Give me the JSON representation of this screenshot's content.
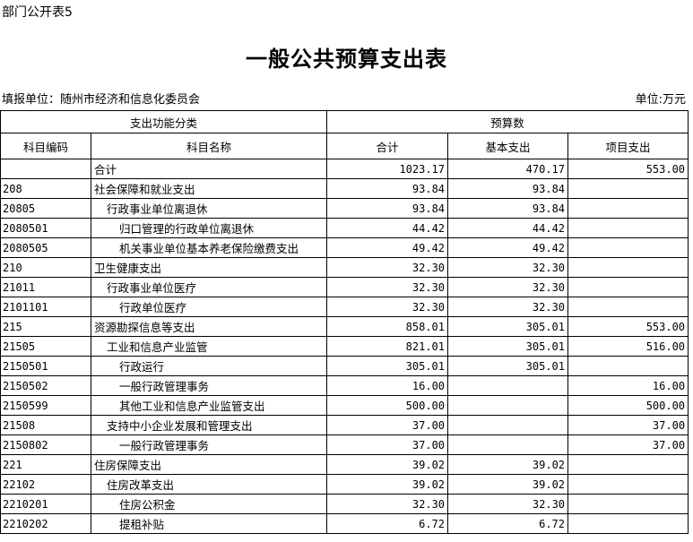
{
  "tag": "部门公开表5",
  "title": "一般公共预算支出表",
  "unit_left": "填报单位：随州市经济和信息化委员会",
  "unit_right": "单位:万元",
  "header": {
    "group1": "支出功能分类",
    "group2": "预算数",
    "code": "科目编码",
    "name": "科目名称",
    "total": "合计",
    "basic": "基本支出",
    "project": "项目支出"
  },
  "rows": [
    {
      "code": "",
      "name": "合计",
      "level": 1,
      "total": "1023.17",
      "basic": "470.17",
      "project": "553.00"
    },
    {
      "code": "208",
      "name": "社会保障和就业支出",
      "level": 1,
      "total": "93.84",
      "basic": "93.84",
      "project": ""
    },
    {
      "code": "20805",
      "name": "行政事业单位离退休",
      "level": 2,
      "total": "93.84",
      "basic": "93.84",
      "project": ""
    },
    {
      "code": "2080501",
      "name": "归口管理的行政单位离退休",
      "level": 3,
      "total": "44.42",
      "basic": "44.42",
      "project": ""
    },
    {
      "code": "2080505",
      "name": "机关事业单位基本养老保险缴费支出",
      "level": 3,
      "total": "49.42",
      "basic": "49.42",
      "project": ""
    },
    {
      "code": "210",
      "name": "卫生健康支出",
      "level": 1,
      "total": "32.30",
      "basic": "32.30",
      "project": ""
    },
    {
      "code": "21011",
      "name": "行政事业单位医疗",
      "level": 2,
      "total": "32.30",
      "basic": "32.30",
      "project": ""
    },
    {
      "code": "2101101",
      "name": "行政单位医疗",
      "level": 3,
      "total": "32.30",
      "basic": "32.30",
      "project": ""
    },
    {
      "code": "215",
      "name": "资源勘探信息等支出",
      "level": 1,
      "total": "858.01",
      "basic": "305.01",
      "project": "553.00"
    },
    {
      "code": "21505",
      "name": "工业和信息产业监管",
      "level": 2,
      "total": "821.01",
      "basic": "305.01",
      "project": "516.00"
    },
    {
      "code": "2150501",
      "name": "行政运行",
      "level": 3,
      "total": "305.01",
      "basic": "305.01",
      "project": ""
    },
    {
      "code": "2150502",
      "name": "一般行政管理事务",
      "level": 3,
      "total": "16.00",
      "basic": "",
      "project": "16.00"
    },
    {
      "code": "2150599",
      "name": "其他工业和信息产业监管支出",
      "level": 3,
      "total": "500.00",
      "basic": "",
      "project": "500.00"
    },
    {
      "code": "21508",
      "name": "支持中小企业发展和管理支出",
      "level": 2,
      "total": "37.00",
      "basic": "",
      "project": "37.00"
    },
    {
      "code": "2150802",
      "name": "一般行政管理事务",
      "level": 3,
      "total": "37.00",
      "basic": "",
      "project": "37.00"
    },
    {
      "code": "221",
      "name": "住房保障支出",
      "level": 1,
      "total": "39.02",
      "basic": "39.02",
      "project": ""
    },
    {
      "code": "22102",
      "name": "住房改革支出",
      "level": 2,
      "total": "39.02",
      "basic": "39.02",
      "project": ""
    },
    {
      "code": "2210201",
      "name": "住房公积金",
      "level": 3,
      "total": "32.30",
      "basic": "32.30",
      "project": ""
    },
    {
      "code": "2210202",
      "name": "提租补贴",
      "level": 3,
      "total": "6.72",
      "basic": "6.72",
      "project": ""
    }
  ]
}
